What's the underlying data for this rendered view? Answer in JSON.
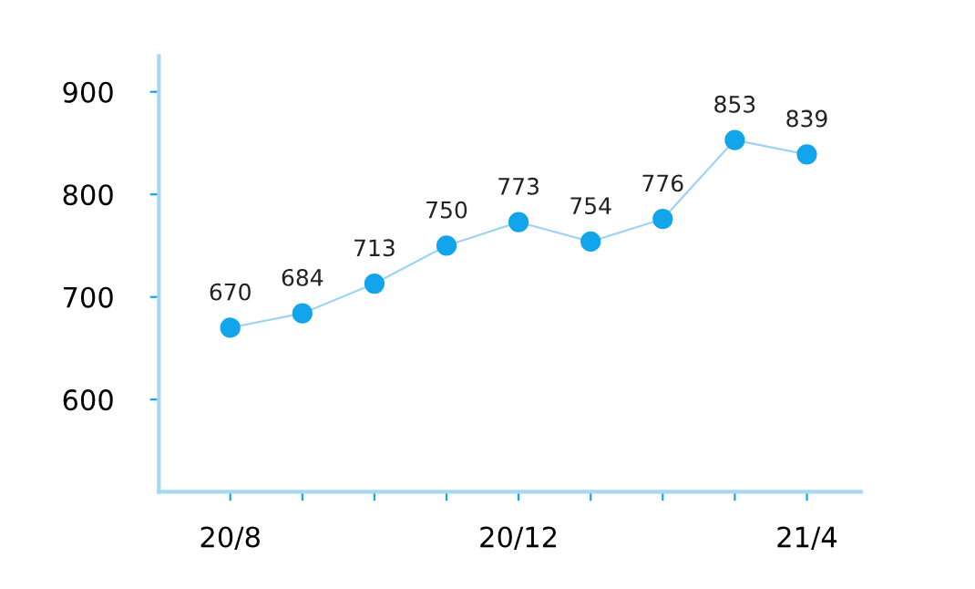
{
  "chart_data": {
    "type": "line",
    "categories": [
      "20/8",
      null,
      null,
      null,
      "20/12",
      null,
      null,
      null,
      "21/4"
    ],
    "series": [
      {
        "color": "#12a5ec",
        "values": [
          670,
          684,
          713,
          750,
          773,
          754,
          776,
          853,
          839
        ]
      }
    ],
    "ylim": [
      510,
      935
    ],
    "yticks": [
      600,
      700,
      800,
      900
    ],
    "data_labels": true,
    "grid": false,
    "legend": false,
    "marker": "circle",
    "line_style": "solid"
  }
}
